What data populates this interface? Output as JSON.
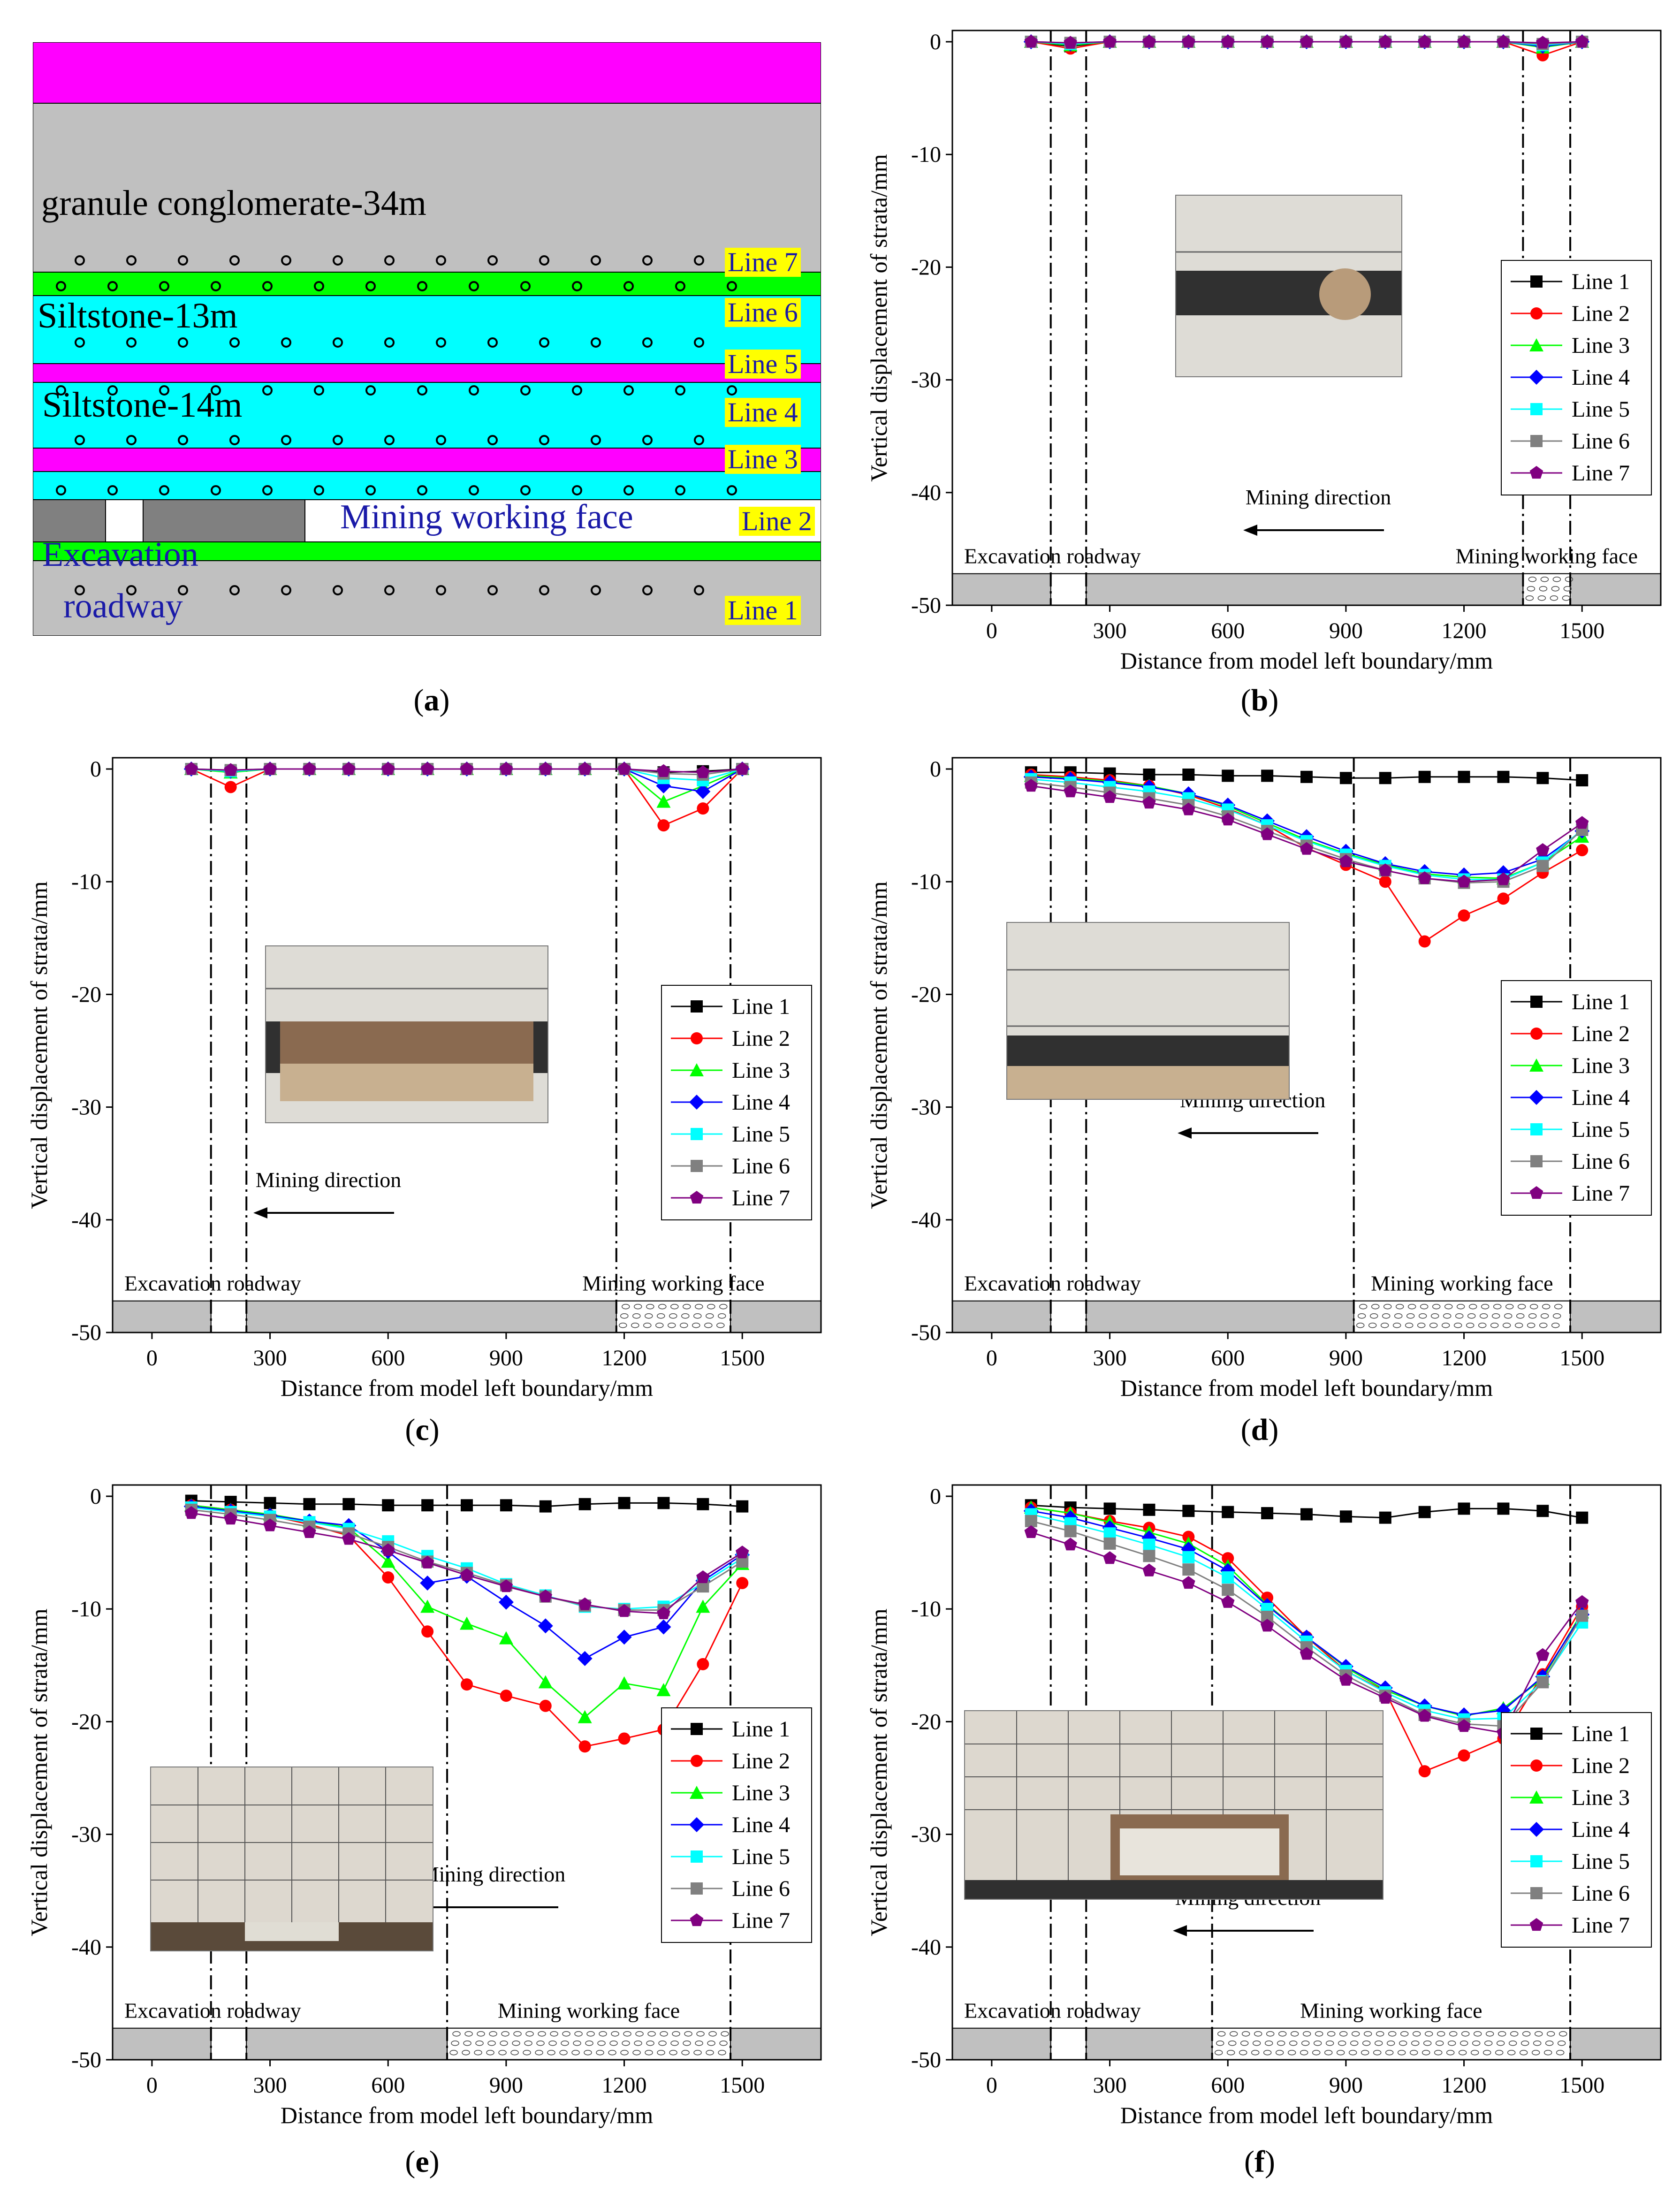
{
  "panels": {
    "a": {
      "label": "a"
    },
    "b": {
      "label": "b"
    },
    "c": {
      "label": "c"
    },
    "d": {
      "label": "d"
    },
    "e": {
      "label": "e"
    },
    "f": {
      "label": "f"
    }
  },
  "schematic": {
    "strata": {
      "granule": "granule conglomerate-34m",
      "siltstone13": "Siltstone-13m",
      "siltstone14": "Siltstone-14m",
      "mining_face": "Mining working face",
      "excavation_line1": "Excavation",
      "excavation_line2": "roadway"
    },
    "line_tags": [
      "Line 1",
      "Line 2",
      "Line 3",
      "Line 4",
      "Line 5",
      "Line 6",
      "Line 7"
    ],
    "colors": {
      "pink": "#ff00ff",
      "gray": "#c0c0c0",
      "green": "#00ff00",
      "cyan": "#00ffff",
      "darkgray": "#808080",
      "tag": "#ffff00",
      "blue": "#1a1aa8"
    }
  },
  "series_style": [
    {
      "name": "Line 1",
      "color": "#000000",
      "marker": "square"
    },
    {
      "name": "Line 2",
      "color": "#ff0000",
      "marker": "circle"
    },
    {
      "name": "Line 3",
      "color": "#00ff00",
      "marker": "triangle"
    },
    {
      "name": "Line 4",
      "color": "#0000ff",
      "marker": "diamond"
    },
    {
      "name": "Line 5",
      "color": "#00ffff",
      "marker": "square"
    },
    {
      "name": "Line 6",
      "color": "#808080",
      "marker": "square"
    },
    {
      "name": "Line 7",
      "color": "#800080",
      "marker": "pentagon"
    }
  ],
  "chart_data": [
    {
      "id": "b",
      "type": "line",
      "xlabel": "Distance from model left boundary/mm",
      "ylabel": "Vertical displacement of strata/mm",
      "xlim": [
        -100,
        1700
      ],
      "ylim": [
        -50,
        1
      ],
      "xticks": [
        0,
        300,
        600,
        900,
        1200,
        1500
      ],
      "yticks": [
        0,
        -10,
        -20,
        -30,
        -40,
        -50
      ],
      "roadway": [
        150,
        240
      ],
      "face": [
        1350,
        1470
      ],
      "x": [
        100,
        200,
        300,
        400,
        500,
        600,
        700,
        800,
        900,
        1000,
        1100,
        1200,
        1300,
        1400,
        1500
      ],
      "series": [
        {
          "name": "Line 1",
          "values": [
            0,
            -0.4,
            0,
            0,
            0,
            0,
            0,
            0,
            0,
            0,
            0,
            0,
            0,
            -0.3,
            0
          ]
        },
        {
          "name": "Line 2",
          "values": [
            0,
            -0.6,
            0,
            0,
            0,
            0,
            0,
            0,
            0,
            0,
            0,
            0,
            0,
            -1.2,
            0
          ]
        },
        {
          "name": "Line 3",
          "values": [
            0,
            -0.3,
            0,
            0,
            0,
            0,
            0,
            0,
            0,
            0,
            0,
            0,
            0,
            -0.5,
            0
          ]
        },
        {
          "name": "Line 4",
          "values": [
            0,
            -0.2,
            0,
            0,
            0,
            0,
            0,
            0,
            0,
            0,
            0,
            0,
            0,
            -0.4,
            0
          ]
        },
        {
          "name": "Line 5",
          "values": [
            0,
            -0.2,
            0,
            0,
            0,
            0,
            0,
            0,
            0,
            0,
            0,
            0,
            0,
            -0.3,
            0
          ]
        },
        {
          "name": "Line 6",
          "values": [
            0,
            -0.1,
            0,
            0,
            0,
            0,
            0,
            0,
            0,
            0,
            0,
            0,
            0,
            -0.2,
            0
          ]
        },
        {
          "name": "Line 7",
          "values": [
            0,
            -0.1,
            0,
            0,
            0,
            0,
            0,
            0,
            0,
            0,
            0,
            0,
            0,
            -0.1,
            0
          ]
        }
      ],
      "annotations": {
        "mining_direction": "Mining direction",
        "excavation_roadway": "Excavation roadway",
        "mining_working_face": "Mining working face"
      },
      "legend": "right"
    },
    {
      "id": "c",
      "type": "line",
      "xlabel": "Distance from model left boundary/mm",
      "ylabel": "Vertical displacement of strata/mm",
      "xlim": [
        -100,
        1700
      ],
      "ylim": [
        -50,
        1
      ],
      "xticks": [
        0,
        300,
        600,
        900,
        1200,
        1500
      ],
      "yticks": [
        0,
        -10,
        -20,
        -30,
        -40,
        -50
      ],
      "roadway": [
        150,
        240
      ],
      "face": [
        1180,
        1470
      ],
      "x": [
        100,
        200,
        300,
        400,
        500,
        600,
        700,
        800,
        900,
        1000,
        1100,
        1200,
        1300,
        1400,
        1500
      ],
      "series": [
        {
          "name": "Line 1",
          "values": [
            0,
            -0.2,
            0,
            0,
            0,
            0,
            0,
            0,
            0,
            0,
            0,
            0,
            -0.3,
            -0.2,
            0
          ]
        },
        {
          "name": "Line 2",
          "values": [
            0,
            -1.6,
            0,
            0,
            0,
            0,
            0,
            0,
            0,
            0,
            0,
            0,
            -5.0,
            -3.5,
            0
          ]
        },
        {
          "name": "Line 3",
          "values": [
            0,
            -0.3,
            0,
            0,
            0,
            0,
            0,
            0,
            0,
            0,
            0,
            0,
            -2.9,
            -1.5,
            0
          ]
        },
        {
          "name": "Line 4",
          "values": [
            0,
            -0.2,
            0,
            0,
            0,
            0,
            0,
            0,
            0,
            0,
            0,
            0,
            -1.5,
            -2.0,
            0
          ]
        },
        {
          "name": "Line 5",
          "values": [
            0,
            -0.2,
            0,
            0,
            0,
            0,
            0,
            0,
            0,
            0,
            0,
            0,
            -0.8,
            -1.0,
            0
          ]
        },
        {
          "name": "Line 6",
          "values": [
            0,
            -0.1,
            0,
            0,
            0,
            0,
            0,
            0,
            0,
            0,
            0,
            0,
            -0.4,
            -0.5,
            0
          ]
        },
        {
          "name": "Line 7",
          "values": [
            0,
            -0.1,
            0,
            0,
            0,
            0,
            0,
            0,
            0,
            0,
            0,
            0,
            -0.2,
            -0.3,
            0
          ]
        }
      ],
      "annotations": {
        "mining_direction": "Mining direction",
        "excavation_roadway": "Excavation roadway",
        "mining_working_face": "Mining working face"
      },
      "legend": "right"
    },
    {
      "id": "d",
      "type": "line",
      "xlabel": "Distance from model left boundary/mm",
      "ylabel": "Vertical displacement of strata/mm",
      "xlim": [
        -100,
        1700
      ],
      "ylim": [
        -50,
        1
      ],
      "xticks": [
        0,
        300,
        600,
        900,
        1200,
        1500
      ],
      "yticks": [
        0,
        -10,
        -20,
        -30,
        -40,
        -50
      ],
      "roadway": [
        150,
        240
      ],
      "face": [
        920,
        1470
      ],
      "x": [
        100,
        200,
        300,
        400,
        500,
        600,
        700,
        800,
        900,
        1000,
        1100,
        1200,
        1300,
        1400,
        1500
      ],
      "series": [
        {
          "name": "Line 1",
          "values": [
            -0.3,
            -0.3,
            -0.4,
            -0.5,
            -0.5,
            -0.6,
            -0.6,
            -0.7,
            -0.8,
            -0.8,
            -0.7,
            -0.7,
            -0.7,
            -0.8,
            -1.0
          ]
        },
        {
          "name": "Line 2",
          "values": [
            -0.5,
            -0.7,
            -1.0,
            -1.5,
            -2.3,
            -3.5,
            -5.0,
            -7.0,
            -8.5,
            -10.0,
            -15.3,
            -13.0,
            -11.5,
            -9.2,
            -7.2
          ]
        },
        {
          "name": "Line 3",
          "values": [
            -0.6,
            -0.8,
            -1.1,
            -1.5,
            -2.2,
            -3.3,
            -4.8,
            -6.3,
            -7.5,
            -8.5,
            -9.3,
            -9.6,
            -9.7,
            -8.3,
            -6.0
          ]
        },
        {
          "name": "Line 4",
          "values": [
            -0.7,
            -0.9,
            -1.2,
            -1.6,
            -2.2,
            -3.2,
            -4.6,
            -6.0,
            -7.3,
            -8.4,
            -9.1,
            -9.4,
            -9.2,
            -8.0,
            -5.5
          ]
        },
        {
          "name": "Line 5",
          "values": [
            -0.9,
            -1.2,
            -1.6,
            -2.0,
            -2.6,
            -3.6,
            -5.0,
            -6.4,
            -7.6,
            -8.6,
            -9.4,
            -9.8,
            -9.8,
            -8.3,
            -5.4
          ]
        },
        {
          "name": "Line 6",
          "values": [
            -1.2,
            -1.6,
            -2.1,
            -2.6,
            -3.2,
            -4.2,
            -5.5,
            -6.8,
            -8.0,
            -9.0,
            -9.7,
            -10.1,
            -10.0,
            -8.6,
            -5.4
          ]
        },
        {
          "name": "Line 7",
          "values": [
            -1.5,
            -2.0,
            -2.5,
            -3.0,
            -3.6,
            -4.5,
            -5.8,
            -7.1,
            -8.2,
            -9.0,
            -9.7,
            -10.0,
            -9.8,
            -7.2,
            -4.8
          ]
        }
      ],
      "annotations": {
        "mining_direction": "Mining direction",
        "excavation_roadway": "Excavation roadway",
        "mining_working_face": "Mining working face"
      },
      "legend": "right"
    },
    {
      "id": "e",
      "type": "line",
      "xlabel": "Distance from model left boundary/mm",
      "ylabel": "Vertical displacement of strata/mm",
      "xlim": [
        -100,
        1700
      ],
      "ylim": [
        -50,
        1
      ],
      "xticks": [
        0,
        300,
        600,
        900,
        1200,
        1500
      ],
      "yticks": [
        0,
        -10,
        -20,
        -30,
        -40,
        -50
      ],
      "roadway": [
        150,
        240
      ],
      "face": [
        750,
        1470
      ],
      "x": [
        100,
        200,
        300,
        400,
        500,
        600,
        700,
        800,
        900,
        1000,
        1100,
        1200,
        1300,
        1400,
        1500
      ],
      "series": [
        {
          "name": "Line 1",
          "values": [
            -0.4,
            -0.5,
            -0.6,
            -0.7,
            -0.7,
            -0.8,
            -0.8,
            -0.8,
            -0.8,
            -0.9,
            -0.7,
            -0.6,
            -0.6,
            -0.7,
            -0.9
          ]
        },
        {
          "name": "Line 2",
          "values": [
            -0.8,
            -1.2,
            -1.7,
            -2.5,
            -3.5,
            -7.2,
            -12.0,
            -16.7,
            -17.7,
            -18.6,
            -22.2,
            -21.5,
            -20.7,
            -14.9,
            -7.7
          ]
        },
        {
          "name": "Line 3",
          "values": [
            -0.8,
            -1.2,
            -1.6,
            -2.2,
            -2.8,
            -5.8,
            -9.8,
            -11.3,
            -12.6,
            -16.5,
            -19.6,
            -16.6,
            -17.2,
            -9.8,
            -6.0
          ]
        },
        {
          "name": "Line 4",
          "values": [
            -0.9,
            -1.3,
            -1.7,
            -2.2,
            -2.6,
            -4.9,
            -7.7,
            -7.1,
            -9.4,
            -11.5,
            -14.4,
            -12.5,
            -11.6,
            -7.5,
            -5.2
          ]
        },
        {
          "name": "Line 5",
          "values": [
            -1.0,
            -1.4,
            -1.8,
            -2.3,
            -2.9,
            -4.0,
            -5.3,
            -6.4,
            -7.8,
            -8.8,
            -9.8,
            -10.0,
            -9.8,
            -7.7,
            -5.5
          ]
        },
        {
          "name": "Line 6",
          "values": [
            -1.2,
            -1.6,
            -2.1,
            -2.7,
            -3.3,
            -4.5,
            -5.8,
            -6.8,
            -7.9,
            -8.9,
            -9.7,
            -10.1,
            -10.1,
            -8.0,
            -5.8
          ]
        },
        {
          "name": "Line 7",
          "values": [
            -1.5,
            -2.0,
            -2.6,
            -3.2,
            -3.8,
            -4.8,
            -5.9,
            -7.0,
            -8.0,
            -8.9,
            -9.6,
            -10.2,
            -10.4,
            -7.2,
            -5.0
          ]
        }
      ],
      "annotations": {
        "mining_direction": "Mining direction",
        "excavation_roadway": "Excavation roadway",
        "mining_working_face": "Mining working face"
      },
      "legend": "right"
    },
    {
      "id": "f",
      "type": "line",
      "xlabel": "Distance from model left boundary/mm",
      "ylabel": "Vertical displacement of strata/mm",
      "xlim": [
        -100,
        1700
      ],
      "ylim": [
        -50,
        1
      ],
      "xticks": [
        0,
        300,
        600,
        900,
        1200,
        1500
      ],
      "yticks": [
        0,
        -10,
        -20,
        -30,
        -40,
        -50
      ],
      "roadway": [
        150,
        240
      ],
      "face": [
        560,
        1470
      ],
      "x": [
        100,
        200,
        300,
        400,
        500,
        600,
        700,
        800,
        900,
        1000,
        1100,
        1200,
        1300,
        1400,
        1500
      ],
      "series": [
        {
          "name": "Line 1",
          "values": [
            -0.8,
            -1.0,
            -1.1,
            -1.2,
            -1.3,
            -1.4,
            -1.5,
            -1.6,
            -1.8,
            -1.9,
            -1.4,
            -1.1,
            -1.1,
            -1.3,
            -1.9
          ]
        },
        {
          "name": "Line 2",
          "values": [
            -1.0,
            -1.5,
            -2.2,
            -2.8,
            -3.6,
            -5.5,
            -9.0,
            -12.5,
            -15.5,
            -17.3,
            -24.4,
            -23.0,
            -21.5,
            -15.8,
            -9.8
          ]
        },
        {
          "name": "Line 3",
          "values": [
            -1.0,
            -1.5,
            -2.3,
            -3.2,
            -4.2,
            -6.2,
            -9.6,
            -12.5,
            -15.2,
            -17.2,
            -18.6,
            -19.5,
            -18.8,
            -16.2,
            -10.3
          ]
        },
        {
          "name": "Line 4",
          "values": [
            -1.3,
            -1.9,
            -2.8,
            -3.7,
            -4.7,
            -6.6,
            -9.7,
            -12.5,
            -15.1,
            -17.0,
            -18.6,
            -19.4,
            -19.0,
            -16.0,
            -10.5
          ]
        },
        {
          "name": "Line 5",
          "values": [
            -1.6,
            -2.4,
            -3.3,
            -4.3,
            -5.4,
            -7.2,
            -10.0,
            -12.9,
            -15.5,
            -17.4,
            -19.0,
            -19.8,
            -19.7,
            -16.4,
            -11.2
          ]
        },
        {
          "name": "Line 6",
          "values": [
            -2.2,
            -3.1,
            -4.2,
            -5.3,
            -6.5,
            -8.3,
            -10.7,
            -13.4,
            -15.9,
            -17.7,
            -19.4,
            -20.2,
            -20.4,
            -16.5,
            -10.6
          ]
        },
        {
          "name": "Line 7",
          "values": [
            -3.2,
            -4.3,
            -5.5,
            -6.6,
            -7.7,
            -9.4,
            -11.5,
            -14.0,
            -16.3,
            -17.9,
            -19.5,
            -20.4,
            -21.0,
            -14.1,
            -9.4
          ]
        }
      ],
      "annotations": {
        "mining_direction": "Mining direction",
        "excavation_roadway": "Excavation roadway",
        "mining_working_face": "Mining working face"
      },
      "legend": "right"
    }
  ]
}
